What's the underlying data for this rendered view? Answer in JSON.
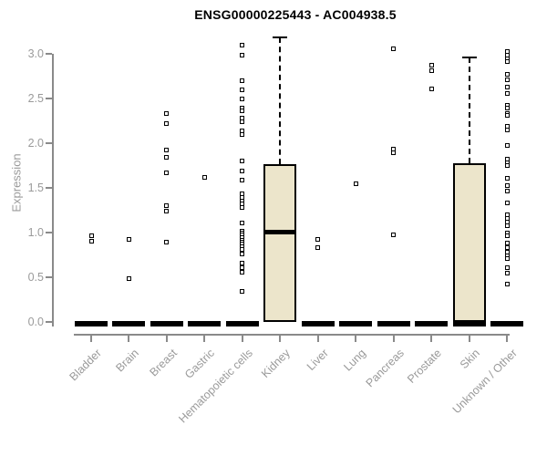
{
  "title": "ENSG00000225443 - AC004938.5",
  "chart_data": {
    "type": "boxplot",
    "title": "ENSG00000225443 - AC004938.5",
    "xlabel": "",
    "ylabel": "Expression",
    "ylim": [
      0.0,
      3.2
    ],
    "yticks": [
      "0.0",
      "0.5",
      "1.0",
      "1.5",
      "2.0",
      "2.5",
      "3.0"
    ],
    "ytick_values": [
      0.0,
      0.5,
      1.0,
      1.5,
      2.0,
      2.5,
      3.0
    ],
    "grid": false,
    "legend": "none",
    "categories": [
      "Bladder",
      "Brain",
      "Breast",
      "Gastric",
      "Hematopoietic cells",
      "Kidney",
      "Liver",
      "Lung",
      "Pancreas",
      "Prostate",
      "Skin",
      "Unknown / Other"
    ],
    "groups": [
      {
        "name": "Bladder",
        "zero_bar": true,
        "box": null,
        "points": [
          0.96,
          0.9
        ]
      },
      {
        "name": "Brain",
        "zero_bar": true,
        "box": null,
        "points": [
          0.92,
          0.48
        ]
      },
      {
        "name": "Breast",
        "zero_bar": true,
        "box": null,
        "points": [
          2.33,
          2.22,
          1.92,
          1.84,
          1.67,
          1.3,
          1.24,
          0.89
        ]
      },
      {
        "name": "Gastric",
        "zero_bar": true,
        "box": null,
        "points": [
          1.62
        ]
      },
      {
        "name": "Hematopoietic cells",
        "zero_bar": true,
        "box": null,
        "points": [
          3.1,
          2.98,
          2.7,
          2.6,
          2.5,
          2.39,
          2.36,
          2.28,
          2.24,
          2.14,
          2.1,
          1.8,
          1.69,
          1.59,
          1.43,
          1.39,
          1.35,
          1.32,
          1.28,
          1.11,
          1.02,
          0.99,
          0.97,
          0.94,
          0.91,
          0.89,
          0.87,
          0.84,
          0.81,
          0.76,
          0.66,
          0.61,
          0.56,
          0.34
        ]
      },
      {
        "name": "Kidney",
        "zero_bar": false,
        "box": {
          "q1": 0.0,
          "median": 1.01,
          "q3": 1.77,
          "whisker_high": 3.18,
          "whisker_low": 0.0
        },
        "points": []
      },
      {
        "name": "Liver",
        "zero_bar": true,
        "box": null,
        "points": [
          0.92,
          0.83
        ]
      },
      {
        "name": "Lung",
        "zero_bar": true,
        "box": null,
        "points": [
          1.55
        ]
      },
      {
        "name": "Pancreas",
        "zero_bar": true,
        "box": null,
        "points": [
          3.06,
          1.93,
          1.89,
          0.97
        ]
      },
      {
        "name": "Prostate",
        "zero_bar": true,
        "box": null,
        "points": [
          2.87,
          2.81,
          2.61
        ]
      },
      {
        "name": "Skin",
        "zero_bar": true,
        "box": {
          "q1": 0.0,
          "median": 0.0,
          "q3": 1.78,
          "whisker_high": 2.96,
          "whisker_low": 0.0
        },
        "points": []
      },
      {
        "name": "Unknown / Other",
        "zero_bar": true,
        "box": null,
        "points": [
          3.03,
          2.98,
          2.94,
          2.91,
          2.77,
          2.71,
          2.63,
          2.56,
          2.42,
          2.39,
          2.33,
          2.31,
          2.19,
          2.15,
          1.97,
          1.82,
          1.78,
          1.75,
          1.61,
          1.53,
          1.46,
          1.33,
          1.2,
          1.16,
          1.12,
          1.08,
          1.0,
          0.96,
          0.88,
          0.83,
          0.78,
          0.74,
          0.71,
          0.61,
          0.55,
          0.42
        ]
      }
    ],
    "colors": {
      "box_fill": "#ece5cb",
      "box_border": "#000000",
      "median": "#000000",
      "point": "#000000",
      "axis": "#8a8a8a",
      "tick_label": "#9a9a9a",
      "title": "#000000"
    }
  }
}
